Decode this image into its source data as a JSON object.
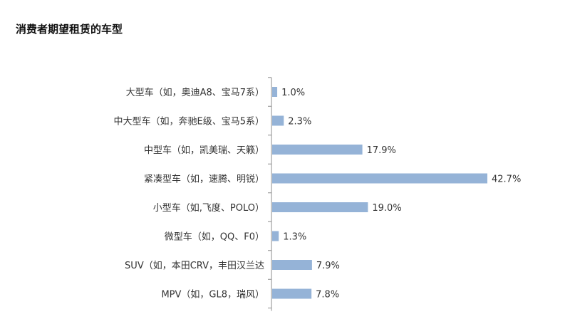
{
  "chart_data": {
    "type": "bar",
    "orientation": "horizontal",
    "title": "消费者期望租赁的车型",
    "categories": [
      "大型车（如，奥迪A8、宝马7系）",
      "中大型车（如，奔驰E级、宝马5系）",
      "中型车（如，凯美瑞、天籁）",
      "紧凑型车（如，速腾、明锐）",
      "小型车（如,飞度、POLO）",
      "微型车（如，QQ、F0）",
      "SUV（如，本田CRV，丰田汉兰达",
      "MPV（如，GL8，瑞风）"
    ],
    "values": [
      1.0,
      2.3,
      17.9,
      42.7,
      19.0,
      1.3,
      7.9,
      7.8
    ],
    "value_labels": [
      "1.0%",
      "2.3%",
      "17.9%",
      "42.7%",
      "19.0%",
      "1.3%",
      "7.9%",
      "7.8%"
    ],
    "xlim": [
      0,
      45
    ],
    "grid": false,
    "bar_color": "#95b3d7"
  }
}
